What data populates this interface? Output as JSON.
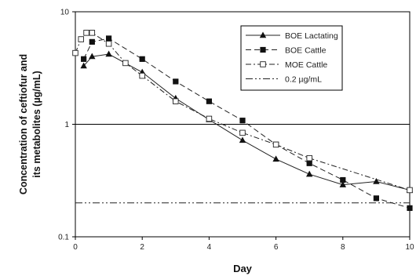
{
  "chart_data": {
    "type": "line",
    "title": "",
    "xlabel": "Day",
    "ylabel": "Concentration of ceftiofur and its metabolites (µg/mL)",
    "ylabel_lines": [
      "Concentration of ceftiofur and",
      "its metabolites (µg/mL)"
    ],
    "x_ticks": [
      "0",
      "2",
      "4",
      "6",
      "8",
      "10"
    ],
    "y_ticks": [
      "0.1",
      "1",
      "10"
    ],
    "xlim": [
      0,
      10
    ],
    "ylim": [
      0.1,
      10
    ],
    "y_scale": "log",
    "grid": "horizontal line at 1",
    "legend_position": "top-right",
    "series": [
      {
        "name": "BOE Lactating",
        "line_style": "solid",
        "marker": "filled-triangle",
        "x": [
          0.25,
          0.5,
          1,
          2,
          3,
          4,
          5,
          6,
          7,
          8,
          9,
          10
        ],
        "y": [
          3.3,
          4.0,
          4.2,
          2.9,
          1.7,
          1.1,
          0.72,
          0.49,
          0.36,
          0.29,
          0.31,
          0.26
        ]
      },
      {
        "name": "BOE Cattle",
        "line_style": "dashed",
        "marker": "filled-square",
        "x": [
          0.25,
          0.5,
          1,
          2,
          3,
          4,
          5,
          6,
          7,
          8,
          9,
          10
        ],
        "y": [
          3.8,
          5.4,
          5.8,
          3.8,
          2.4,
          1.6,
          1.08,
          0.66,
          0.45,
          0.32,
          0.22,
          0.18
        ]
      },
      {
        "name": "MOE Cattle",
        "line_style": "dash-dot",
        "marker": "open-square",
        "x": [
          0,
          0.17,
          0.33,
          0.5,
          1,
          1.5,
          2,
          3,
          4,
          5,
          6,
          7,
          10
        ],
        "y": [
          4.3,
          5.7,
          6.5,
          6.5,
          5.2,
          3.5,
          2.7,
          1.6,
          1.12,
          0.84,
          0.66,
          0.5,
          0.26
        ]
      },
      {
        "name": "0.2 µg/mL",
        "line_style": "dash-dot-dot",
        "marker": "none",
        "x": [
          0,
          10
        ],
        "y": [
          0.2,
          0.2
        ]
      }
    ]
  }
}
